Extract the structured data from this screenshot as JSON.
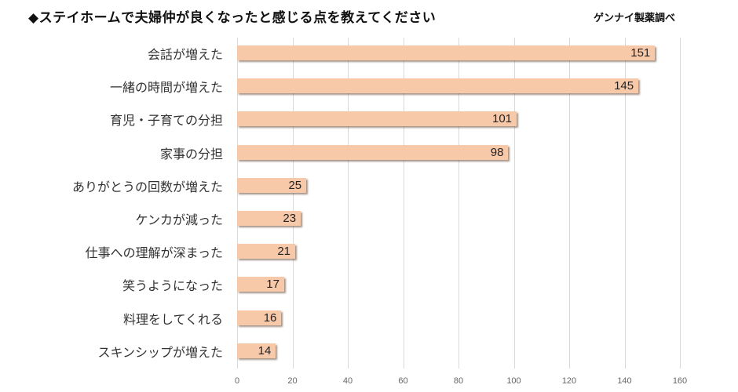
{
  "header": {
    "title": "◆ステイホームで夫婦仲が良くなったと感じる点を教えてください",
    "source": "ゲンナイ製薬調べ"
  },
  "colors": {
    "bar": "#f8c9a9",
    "bar_shadow": "#7a5a46",
    "grid": "#d9d9d9"
  },
  "chart_data": {
    "type": "bar",
    "orientation": "horizontal",
    "title": "◆ステイホームで夫婦仲が良くなったと感じる点を教えてください",
    "subtitle": "ゲンナイ製薬調べ",
    "xlabel": "",
    "ylabel": "",
    "categories": [
      "会話が増えた",
      "一緒の時間が増えた",
      "育児・子育ての分担",
      "家事の分担",
      "ありがとうの回数が増えた",
      "ケンカが減った",
      "仕事への理解が深まった",
      "笑うようになった",
      "料理をしてくれる",
      "スキンシップが増えた"
    ],
    "values": [
      151,
      145,
      101,
      98,
      25,
      23,
      21,
      17,
      16,
      14
    ],
    "value_labels": [
      "151",
      "145",
      "101",
      "98",
      "25",
      "23",
      "21",
      "17",
      "16",
      "14"
    ],
    "xlim": [
      0,
      160
    ],
    "xticks": [
      "0",
      "20",
      "40",
      "60",
      "80",
      "100",
      "120",
      "140",
      "160"
    ],
    "grid": true,
    "legend": null
  }
}
